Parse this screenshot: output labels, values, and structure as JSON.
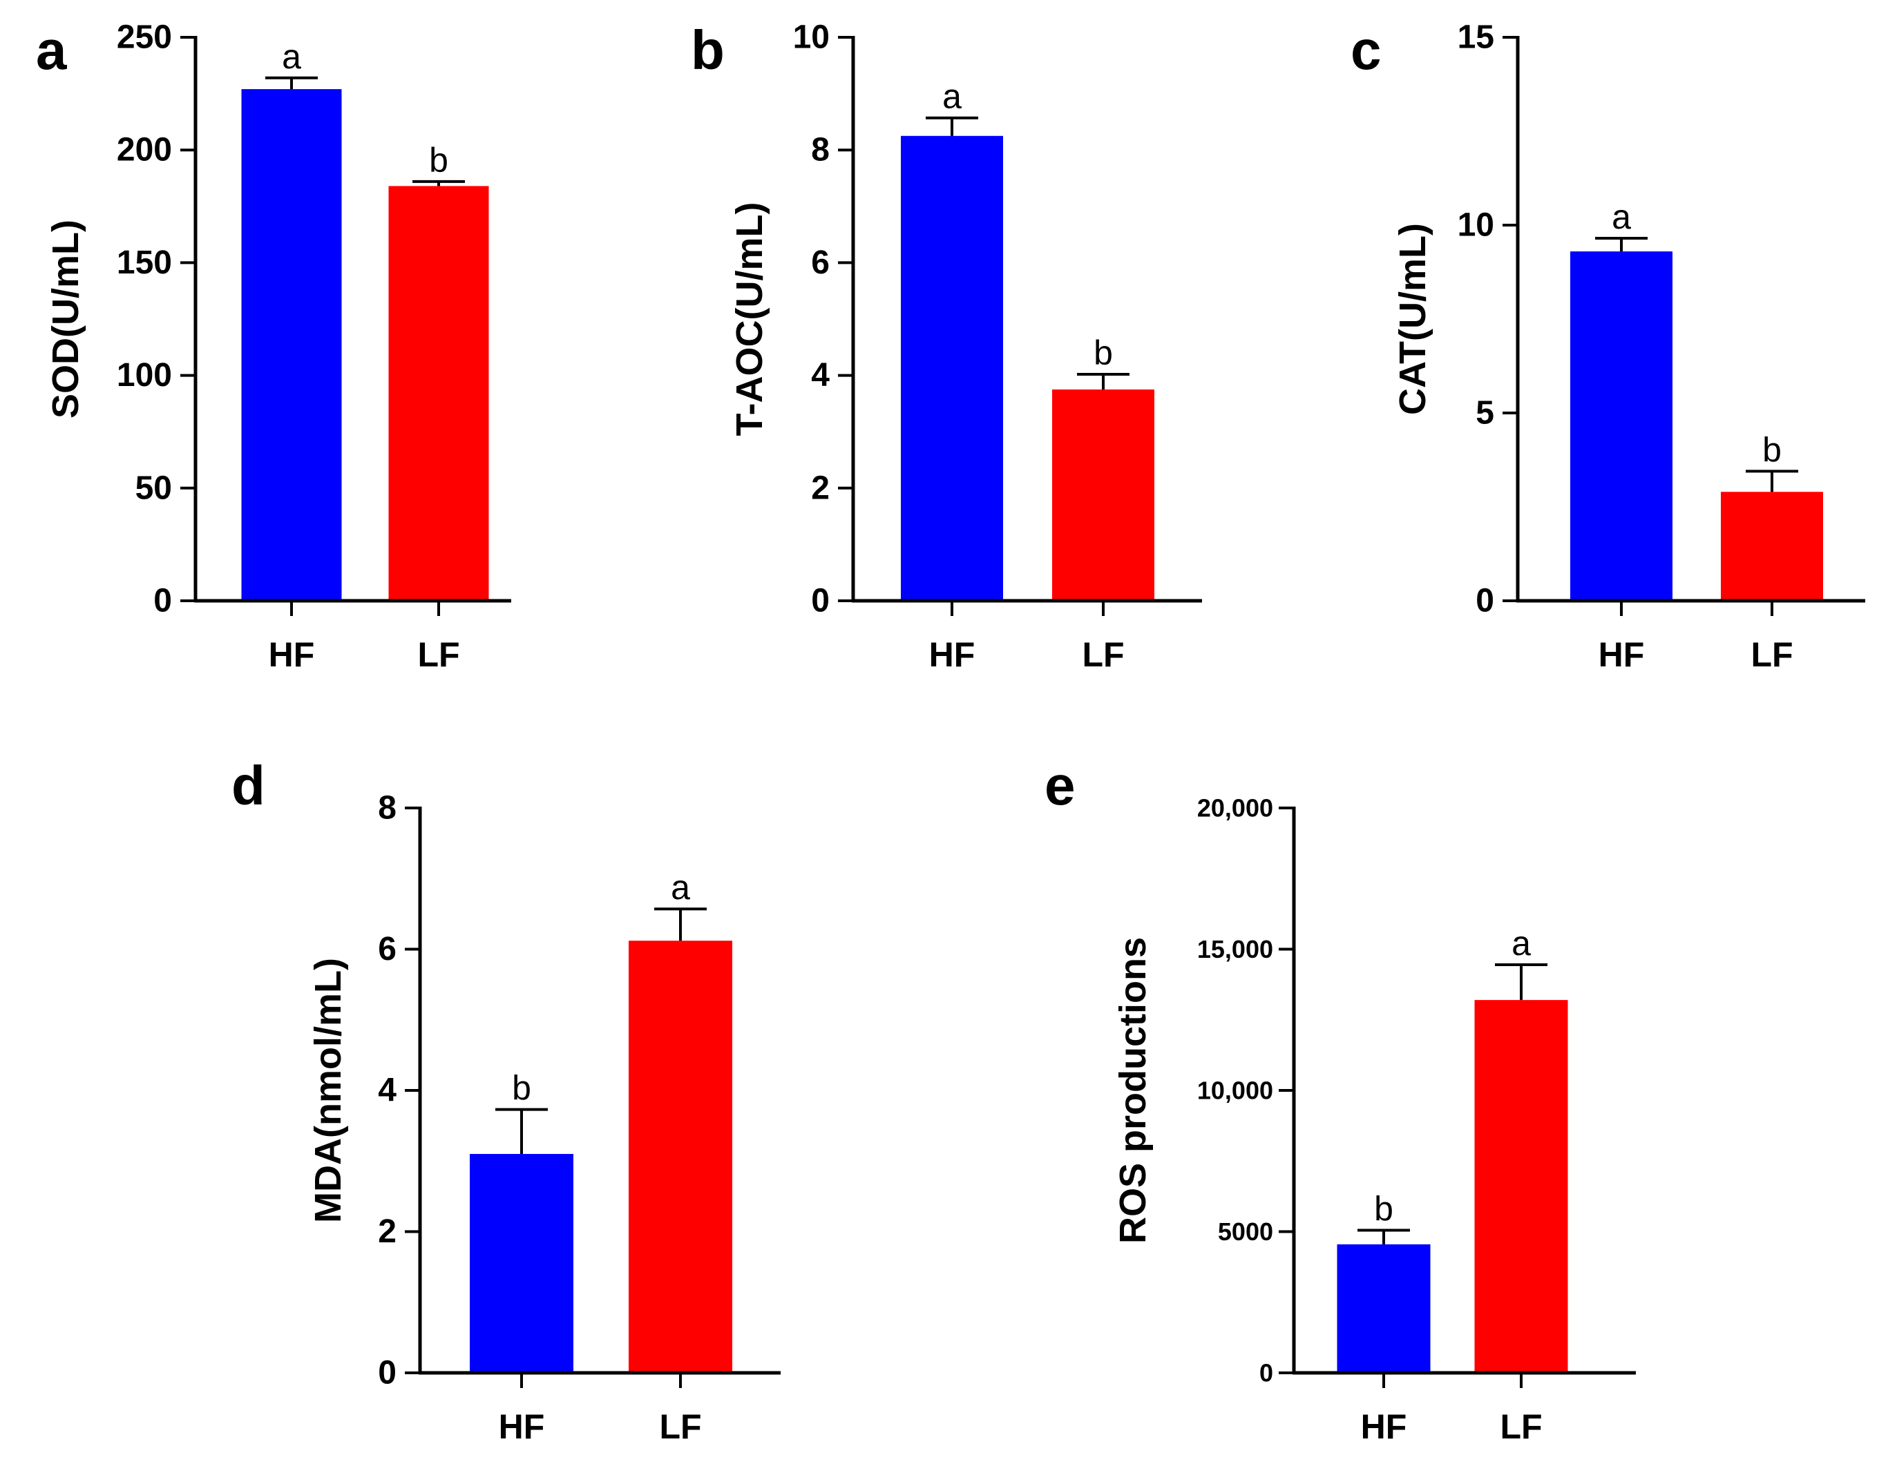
{
  "chart_data": [
    {
      "panel": "a",
      "type": "bar",
      "categories": [
        "HF",
        "LF"
      ],
      "values": [
        227,
        184
      ],
      "errors": [
        5,
        2
      ],
      "sig_letters": [
        "a",
        "b"
      ],
      "colors": [
        "#0000FF",
        "#FF0000"
      ],
      "ylabel": "SOD(U/mL)",
      "xlabel": "",
      "ylim": [
        0,
        250
      ],
      "yticks": [
        0,
        50,
        100,
        150,
        200,
        250
      ],
      "ytick_labels": [
        "0",
        "50",
        "100",
        "150",
        "200",
        "250"
      ]
    },
    {
      "panel": "b",
      "type": "bar",
      "categories": [
        "HF",
        "LF"
      ],
      "values": [
        8.25,
        3.75
      ],
      "errors": [
        0.32,
        0.27
      ],
      "sig_letters": [
        "a",
        "b"
      ],
      "colors": [
        "#0000FF",
        "#FF0000"
      ],
      "ylabel": "T-AOC(U/mL)",
      "xlabel": "",
      "ylim": [
        0,
        10
      ],
      "yticks": [
        0,
        2,
        4,
        6,
        8,
        10
      ],
      "ytick_labels": [
        "0",
        "2",
        "4",
        "6",
        "8",
        "10"
      ]
    },
    {
      "panel": "c",
      "type": "bar",
      "categories": [
        "HF",
        "LF"
      ],
      "values": [
        9.3,
        2.9
      ],
      "errors": [
        0.35,
        0.55
      ],
      "sig_letters": [
        "a",
        "b"
      ],
      "colors": [
        "#0000FF",
        "#FF0000"
      ],
      "ylabel": "CAT(U/mL)",
      "xlabel": "",
      "ylim": [
        0,
        15
      ],
      "yticks": [
        0,
        5,
        10,
        15
      ],
      "ytick_labels": [
        "0",
        "5",
        "10",
        "15"
      ]
    },
    {
      "panel": "d",
      "type": "bar",
      "categories": [
        "HF",
        "LF"
      ],
      "values": [
        3.1,
        6.12
      ],
      "errors": [
        0.63,
        0.45
      ],
      "sig_letters": [
        "b",
        "a"
      ],
      "colors": [
        "#0000FF",
        "#FF0000"
      ],
      "ylabel": "MDA(nmol/mL)",
      "xlabel": "",
      "ylim": [
        0,
        8
      ],
      "yticks": [
        0,
        2,
        4,
        6,
        8
      ],
      "ytick_labels": [
        "0",
        "2",
        "4",
        "6",
        "8"
      ]
    },
    {
      "panel": "e",
      "type": "bar",
      "categories": [
        "HF",
        "LF"
      ],
      "values": [
        4550,
        13200
      ],
      "errors": [
        500,
        1250
      ],
      "sig_letters": [
        "b",
        "a"
      ],
      "colors": [
        "#0000FF",
        "#FF0000"
      ],
      "ylabel": "ROS productions",
      "xlabel": "",
      "ylim": [
        0,
        20000
      ],
      "yticks": [
        0,
        5000,
        10000,
        15000,
        20000
      ],
      "ytick_labels": [
        "0",
        "5000",
        "10,000",
        "15,000",
        "20,000"
      ]
    }
  ]
}
